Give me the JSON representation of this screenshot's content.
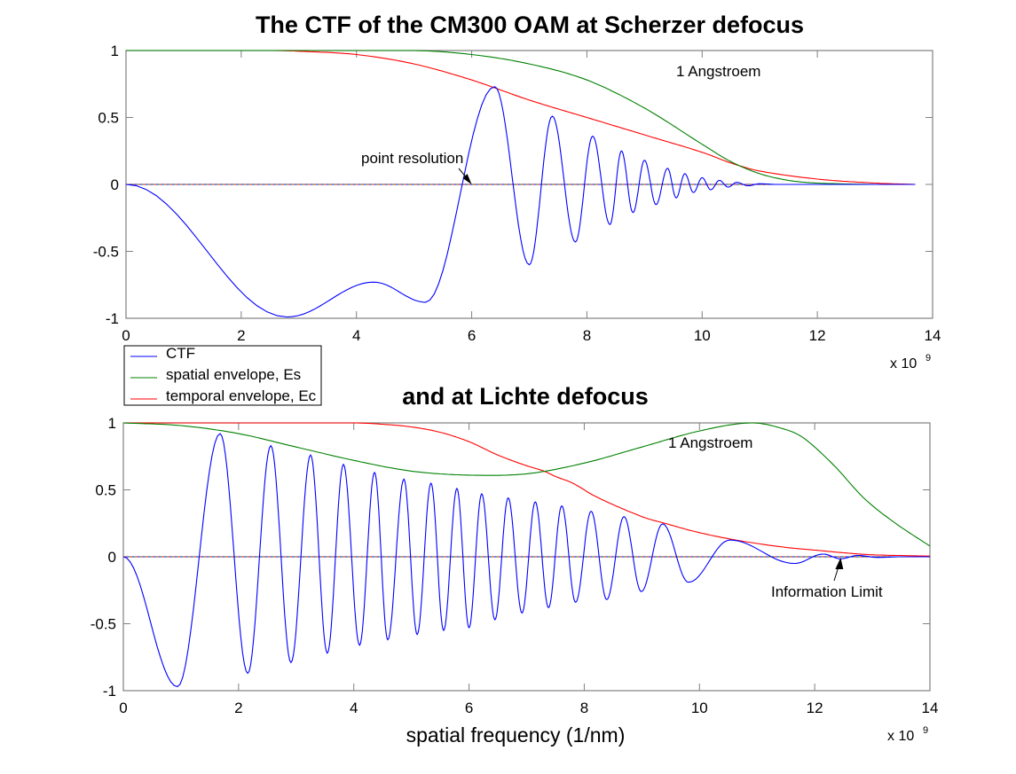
{
  "colors": {
    "ctf": "#0000ff",
    "spatial": "#008000",
    "temporal": "#ff0000",
    "axes": "#808080"
  },
  "chart_data": [
    {
      "type": "line",
      "title": "The CTF of the CM300 OAM at Scherzer defocus",
      "xlabel": "",
      "ylabel": "",
      "x_exponent_label": "x 10",
      "x_exponent": "9",
      "xlim": [
        0,
        14
      ],
      "ylim": [
        -1,
        1
      ],
      "xticks": [
        "0",
        "2",
        "4",
        "6",
        "8",
        "10",
        "12",
        "14"
      ],
      "yticks": [
        "1",
        "0.5",
        "0",
        "-0.5",
        "-1"
      ],
      "grid": false,
      "legend": {
        "placement": "below-left",
        "entries": [
          "CTF",
          "spatial envelope, Es",
          "temporal envelope, Ec"
        ]
      },
      "annotations": [
        {
          "text": "1 Angstroem"
        },
        {
          "text": "point resolution",
          "arrow_to": [
            6.0,
            0
          ]
        }
      ],
      "series": [
        {
          "name": "CTF",
          "x": [
            0,
            2.8,
            4.3,
            5.2,
            6.4,
            7.0,
            7.4,
            7.8,
            8.1,
            8.4,
            8.6,
            8.8,
            9.0,
            9.2,
            9.4,
            9.55,
            9.7,
            9.85,
            10.0,
            10.15,
            10.3,
            10.45,
            10.6,
            10.8,
            11.0,
            11.3,
            13.7
          ],
          "y": [
            0,
            -0.99,
            -0.73,
            -0.88,
            0.73,
            -0.6,
            0.51,
            -0.43,
            0.36,
            -0.3,
            0.25,
            -0.21,
            0.18,
            -0.15,
            0.12,
            -0.1,
            0.08,
            -0.06,
            0.05,
            -0.04,
            0.03,
            -0.02,
            0.015,
            -0.01,
            0.005,
            0,
            0
          ]
        },
        {
          "name": "spatial envelope, Es",
          "x": [
            0,
            5,
            6,
            7,
            8,
            9,
            10,
            10.5,
            11,
            11.5,
            12,
            13,
            13.7
          ],
          "y": [
            1,
            1,
            0.97,
            0.9,
            0.78,
            0.57,
            0.3,
            0.17,
            0.08,
            0.03,
            0.01,
            0,
            0
          ]
        },
        {
          "name": "temporal envelope, Ec",
          "x": [
            0,
            2.5,
            3,
            4,
            5,
            6,
            7,
            8,
            9,
            10,
            10.5,
            11,
            12,
            13,
            13.7
          ],
          "y": [
            1,
            1,
            0.995,
            0.97,
            0.9,
            0.78,
            0.63,
            0.5,
            0.37,
            0.24,
            0.16,
            0.1,
            0.04,
            0.01,
            0
          ]
        }
      ]
    },
    {
      "type": "line",
      "title": "and at Lichte defocus",
      "xlabel": "spatial frequency (1/nm)",
      "ylabel": "",
      "x_exponent_label": "x 10",
      "x_exponent": "9",
      "xlim": [
        0,
        14
      ],
      "ylim": [
        -1,
        1
      ],
      "xticks": [
        "0",
        "2",
        "4",
        "6",
        "8",
        "10",
        "12",
        "14"
      ],
      "yticks": [
        "1",
        "0.5",
        "0",
        "-0.5",
        "-1"
      ],
      "grid": false,
      "annotations": [
        {
          "text": "1 Angstroem"
        },
        {
          "text": "Information Limit",
          "arrow_to": [
            12.45,
            0
          ]
        }
      ],
      "series": [
        {
          "name": "CTF",
          "x": [
            0,
            0.94,
            1.68,
            2.16,
            2.56,
            2.91,
            3.25,
            3.54,
            3.82,
            4.1,
            4.36,
            4.59,
            4.87,
            5.1,
            5.34,
            5.56,
            5.79,
            6.0,
            6.22,
            6.45,
            6.68,
            6.92,
            7.15,
            7.38,
            7.61,
            7.85,
            8.12,
            8.39,
            8.69,
            8.99,
            9.36,
            9.81,
            10.53,
            11.65,
            12.15,
            12.45,
            12.75,
            13.1,
            13.5,
            14
          ],
          "y": [
            0,
            -0.97,
            0.92,
            -0.87,
            0.83,
            -0.79,
            0.76,
            -0.72,
            0.69,
            -0.66,
            0.63,
            -0.62,
            0.58,
            -0.58,
            0.55,
            -0.55,
            0.51,
            -0.53,
            0.47,
            -0.47,
            0.44,
            -0.42,
            0.41,
            -0.38,
            0.38,
            -0.34,
            0.34,
            -0.32,
            0.3,
            -0.26,
            0.245,
            -0.19,
            0.125,
            -0.05,
            0.02,
            -0.015,
            0.01,
            -0.005,
            0,
            0
          ]
        },
        {
          "name": "spatial envelope, Es",
          "x": [
            0,
            1,
            2,
            3,
            4,
            5,
            6,
            7,
            8,
            9,
            10,
            10.9,
            11.5,
            11.83,
            12.34,
            12.85,
            13.37,
            14
          ],
          "y": [
            1,
            0.98,
            0.92,
            0.82,
            0.72,
            0.64,
            0.61,
            0.62,
            0.7,
            0.82,
            0.94,
            1,
            0.95,
            0.88,
            0.68,
            0.44,
            0.26,
            0.08
          ]
        },
        {
          "name": "temporal envelope, Ec",
          "x": [
            0,
            4,
            4.5,
            5,
            5.5,
            6,
            6.5,
            7,
            7.3,
            7.5,
            7.8,
            8.2,
            9,
            9.4,
            10,
            10.7,
            11.5,
            12,
            12.5,
            13,
            14
          ],
          "y": [
            1,
            1,
            0.99,
            0.97,
            0.93,
            0.86,
            0.76,
            0.68,
            0.64,
            0.6,
            0.55,
            0.45,
            0.3,
            0.25,
            0.18,
            0.12,
            0.07,
            0.05,
            0.03,
            0.015,
            0.005
          ]
        }
      ]
    }
  ]
}
